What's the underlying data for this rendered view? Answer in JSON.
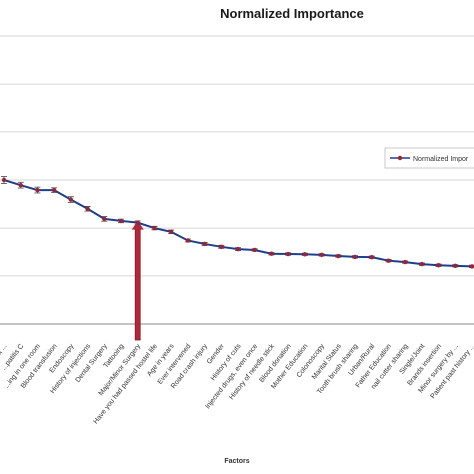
{
  "chart_data": {
    "type": "line",
    "title": "Normalized Importance",
    "xlabel": "Factors",
    "legend_position": "right",
    "grid": true,
    "colors": {
      "line": "#1f3f8a",
      "marker": "#9b2335",
      "arrow": "#b3263b"
    },
    "ylim": [
      0,
      1
    ],
    "yticks": [
      0,
      0.167,
      0.333,
      0.5,
      0.667,
      0.833,
      1
    ],
    "series": [
      {
        "name": "Normalized Impor",
        "x": [
          "Age at ...",
          "...patitis C",
          "...ing in one room",
          "Blood transfusion",
          "Endoscopy",
          "History of injections",
          "Dental Surgery",
          "Tattooing",
          "Major/Minor Surgery",
          "Have you had passed hostel life",
          "Age in years",
          "Ever intervened",
          "Road crash injury",
          "Gender",
          "History of cuts",
          "Injected drugs, even once",
          "History of needle stick",
          "Blood donation",
          "Mother Education",
          "Colonoscopy",
          "Marital Status",
          "Tooth brush sharing",
          "Urban/Rural",
          "Father Education",
          "nail cutter sharing",
          "Single/Joint",
          "Brands insertion",
          "Minor surgery by ...",
          "Patient past history ..."
        ],
        "values": [
          0.5,
          0.482,
          0.465,
          0.465,
          0.432,
          0.4,
          0.365,
          0.358,
          0.352,
          0.333,
          0.32,
          0.29,
          0.278,
          0.268,
          0.26,
          0.257,
          0.244,
          0.243,
          0.242,
          0.24,
          0.236,
          0.233,
          0.232,
          0.22,
          0.215,
          0.208,
          0.204,
          0.202,
          0.2
        ],
        "error": [
          0.012,
          0.01,
          0.01,
          0.008,
          0.01,
          0.008,
          0.008,
          0.006,
          0.006,
          0.006,
          0.006,
          0.005,
          0.005,
          0.005,
          0.005,
          0.004,
          0.004,
          0.004,
          0.004,
          0.004,
          0.004,
          0.004,
          0.004,
          0.004,
          0.004,
          0.004,
          0.004,
          0.004,
          0.004
        ]
      }
    ],
    "annotation": {
      "type": "arrow",
      "at": "Major/Minor Surgery",
      "direction": "up"
    }
  }
}
